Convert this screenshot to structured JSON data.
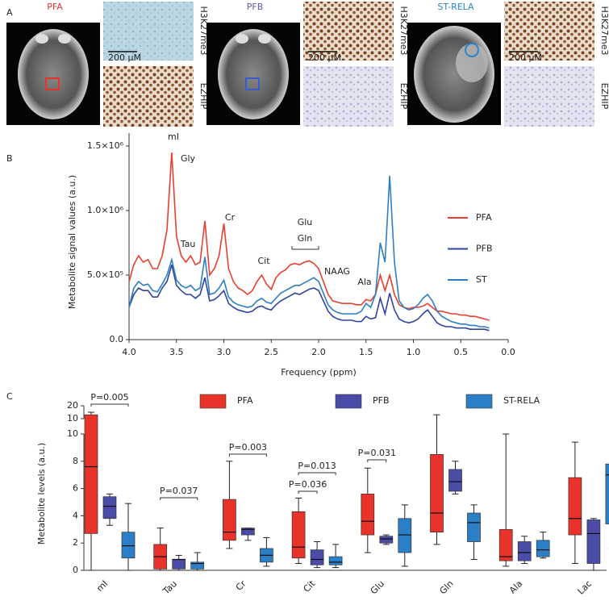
{
  "panel_a": {
    "label": "A",
    "tumors": [
      {
        "name": "PFA",
        "stains": [
          "H3K27me3",
          "EZHIP"
        ],
        "scale_bar": "200 μM"
      },
      {
        "name": "PFB",
        "stains": [
          "H3K27me3",
          "EZHIP"
        ],
        "scale_bar": "200 μM"
      },
      {
        "name": "ST-RELA",
        "stains": [
          "H3K27me3",
          "EZHIP"
        ],
        "scale_bar": "200 μM"
      }
    ]
  },
  "chart_data": [
    {
      "type": "line",
      "panel_label": "B",
      "ylabel": "Metabolite signal values (a.u.)",
      "xlabel": "Frequency (ppm)",
      "x": [
        4.0,
        3.95,
        3.9,
        3.85,
        3.8,
        3.75,
        3.7,
        3.65,
        3.6,
        3.55,
        3.5,
        3.45,
        3.4,
        3.35,
        3.3,
        3.25,
        3.2,
        3.15,
        3.1,
        3.05,
        3.0,
        2.95,
        2.9,
        2.85,
        2.8,
        2.75,
        2.7,
        2.65,
        2.6,
        2.55,
        2.5,
        2.45,
        2.4,
        2.35,
        2.3,
        2.25,
        2.2,
        2.15,
        2.1,
        2.05,
        2.0,
        1.95,
        1.9,
        1.85,
        1.8,
        1.75,
        1.7,
        1.65,
        1.6,
        1.55,
        1.5,
        1.45,
        1.4,
        1.35,
        1.3,
        1.25,
        1.2,
        1.15,
        1.1,
        1.05,
        1.0,
        0.95,
        0.9,
        0.85,
        0.8,
        0.75,
        0.7,
        0.65,
        0.6,
        0.55,
        0.5,
        0.45,
        0.4,
        0.35,
        0.3,
        0.25,
        0.2
      ],
      "xlim": [
        4.0,
        0.0
      ],
      "xticks": [
        {
          "value": 4.0,
          "label": "4.0"
        },
        {
          "value": 3.5,
          "label": "3.5"
        },
        {
          "value": 3.0,
          "label": "3.0"
        },
        {
          "value": 2.5,
          "label": "2.5"
        },
        {
          "value": 2.0,
          "label": "2.0"
        },
        {
          "value": 1.5,
          "label": "1.5"
        },
        {
          "value": 1.0,
          "label": "1.0"
        },
        {
          "value": 0.5,
          "label": "0.5"
        },
        {
          "value": 0.0,
          "label": "0.0"
        }
      ],
      "ylim": [
        0,
        1600000.0
      ],
      "yticks": [
        {
          "value": 0,
          "label": "0.0"
        },
        {
          "value": 500000.0,
          "label": "5.0×10⁵"
        },
        {
          "value": 1000000.0,
          "label": "1.0×10⁶"
        },
        {
          "value": 1500000.0,
          "label": "1.5×10⁶"
        }
      ],
      "legend": "right",
      "series": [
        {
          "name": "PFA",
          "color": "#e8402f",
          "values": [
            450000.0,
            580000.0,
            650000.0,
            600000.0,
            620000.0,
            550000.0,
            550000.0,
            650000.0,
            850000.0,
            1450000.0,
            800000.0,
            650000.0,
            600000.0,
            650000.0,
            580000.0,
            600000.0,
            920000.0,
            500000.0,
            550000.0,
            650000.0,
            900000.0,
            550000.0,
            450000.0,
            400000.0,
            380000.0,
            350000.0,
            380000.0,
            450000.0,
            500000.0,
            430000.0,
            390000.0,
            480000.0,
            520000.0,
            540000.0,
            580000.0,
            590000.0,
            580000.0,
            600000.0,
            610000.0,
            590000.0,
            550000.0,
            450000.0,
            350000.0,
            300000.0,
            290000.0,
            280000.0,
            280000.0,
            280000.0,
            270000.0,
            270000.0,
            310000.0,
            300000.0,
            350000.0,
            500000.0,
            380000.0,
            500000.0,
            350000.0,
            270000.0,
            250000.0,
            240000.0,
            250000.0,
            250000.0,
            260000.0,
            280000.0,
            250000.0,
            220000.0,
            220000.0,
            210000.0,
            200000.0,
            200000.0,
            190000.0,
            190000.0,
            180000.0,
            180000.0,
            170000.0,
            160000.0,
            150000.0
          ]
        },
        {
          "name": "PFB",
          "color": "#2f43a0",
          "values": [
            250000.0,
            350000.0,
            400000.0,
            380000.0,
            380000.0,
            330000.0,
            330000.0,
            400000.0,
            450000.0,
            580000.0,
            420000.0,
            380000.0,
            350000.0,
            350000.0,
            320000.0,
            350000.0,
            480000.0,
            300000.0,
            310000.0,
            340000.0,
            380000.0,
            280000.0,
            250000.0,
            230000.0,
            220000.0,
            210000.0,
            220000.0,
            250000.0,
            260000.0,
            240000.0,
            230000.0,
            270000.0,
            300000.0,
            320000.0,
            340000.0,
            360000.0,
            350000.0,
            370000.0,
            390000.0,
            400000.0,
            380000.0,
            300000.0,
            220000.0,
            180000.0,
            160000.0,
            150000.0,
            150000.0,
            150000.0,
            140000.0,
            140000.0,
            180000.0,
            160000.0,
            170000.0,
            320000.0,
            200000.0,
            360000.0,
            230000.0,
            160000.0,
            140000.0,
            130000.0,
            140000.0,
            160000.0,
            200000.0,
            230000.0,
            180000.0,
            130000.0,
            110000.0,
            100000.0,
            100000.0,
            90000.0,
            90000.0,
            90000.0,
            80000.0,
            80000.0,
            80000.0,
            80000.0,
            70000.0
          ]
        },
        {
          "name": "ST",
          "color": "#2d7fc4",
          "values": [
            250000.0,
            400000.0,
            450000.0,
            420000.0,
            430000.0,
            380000.0,
            370000.0,
            430000.0,
            500000.0,
            620000.0,
            460000.0,
            420000.0,
            400000.0,
            420000.0,
            380000.0,
            400000.0,
            640000.0,
            350000.0,
            360000.0,
            400000.0,
            460000.0,
            330000.0,
            290000.0,
            270000.0,
            260000.0,
            250000.0,
            260000.0,
            300000.0,
            320000.0,
            290000.0,
            280000.0,
            320000.0,
            360000.0,
            380000.0,
            400000.0,
            420000.0,
            420000.0,
            440000.0,
            460000.0,
            480000.0,
            450000.0,
            360000.0,
            270000.0,
            230000.0,
            210000.0,
            200000.0,
            200000.0,
            200000.0,
            200000.0,
            220000.0,
            280000.0,
            250000.0,
            350000.0,
            750000.0,
            600000.0,
            1270000.0,
            600000.0,
            300000.0,
            250000.0,
            230000.0,
            240000.0,
            270000.0,
            320000.0,
            350000.0,
            300000.0,
            220000.0,
            180000.0,
            160000.0,
            140000.0,
            130000.0,
            120000.0,
            120000.0,
            110000.0,
            110000.0,
            100000.0,
            100000.0,
            90000.0
          ]
        }
      ],
      "annotations": [
        "mI",
        "Gly",
        "Tau",
        "Cr",
        "Glu",
        "Gln",
        "Cit",
        "NAAG",
        "Ala"
      ]
    },
    {
      "type": "box",
      "panel_label": "C",
      "ylabel": "Metabolite levels (a.u.)",
      "categories": [
        "mI",
        "Tau",
        "Cr",
        "Cit",
        "Glu",
        "Gln",
        "Ala",
        "Lac"
      ],
      "ylim": [
        0,
        10
      ],
      "yticks": [
        0,
        2,
        4,
        6,
        8,
        10
      ],
      "ylim_upper": [
        10,
        20
      ],
      "yticks_upper": [
        10,
        20
      ],
      "legend": "top",
      "series": [
        {
          "name": "PFA",
          "color": "#e8322a",
          "values": [
            {
              "min": 0,
              "q1": 2.7,
              "median": 7.6,
              "q3": 13,
              "max": 15
            },
            {
              "min": 0,
              "q1": 0.1,
              "median": 1.0,
              "q3": 1.9,
              "max": 3.1
            },
            {
              "min": 1.6,
              "q1": 2.2,
              "median": 2.8,
              "q3": 5.2,
              "max": 8.0
            },
            {
              "min": 0.5,
              "q1": 0.9,
              "median": 1.7,
              "q3": 4.3,
              "max": 5.3
            },
            {
              "min": 1.3,
              "q1": 2.6,
              "median": 3.6,
              "q3": 5.6,
              "max": 7.5
            },
            {
              "min": 1.9,
              "q1": 2.8,
              "median": 4.2,
              "q3": 8.5,
              "max": 13
            },
            {
              "min": 0.3,
              "q1": 0.7,
              "median": 1.0,
              "q3": 3.0,
              "max": 10
            },
            {
              "min": 0.5,
              "q1": 2.6,
              "median": 3.8,
              "q3": 6.8,
              "max": 9.4
            }
          ]
        },
        {
          "name": "PFB",
          "color": "#4b4ba8",
          "values": [
            {
              "min": 3.3,
              "q1": 3.8,
              "median": 4.7,
              "q3": 5.4,
              "max": 5.6
            },
            {
              "min": 0,
              "q1": 0.1,
              "median": 0.8,
              "q3": 0.8,
              "max": 1.1
            },
            {
              "min": 2.2,
              "q1": 2.6,
              "median": 3.0,
              "q3": 3.1,
              "max": 3.1
            },
            {
              "min": 0.2,
              "q1": 0.4,
              "median": 0.8,
              "q3": 1.5,
              "max": 2.1
            },
            {
              "min": 1.9,
              "q1": 2.0,
              "median": 2.3,
              "q3": 2.5,
              "max": 2.6
            },
            {
              "min": 5.6,
              "q1": 5.8,
              "median": 6.5,
              "q3": 7.4,
              "max": 8.0
            },
            {
              "min": 0.5,
              "q1": 0.7,
              "median": 1.3,
              "q3": 2.1,
              "max": 2.5
            },
            {
              "min": 0,
              "q1": 0.5,
              "median": 2.7,
              "q3": 3.7,
              "max": 3.8
            }
          ]
        },
        {
          "name": "ST-RELA",
          "color": "#2a7fc6",
          "values": [
            {
              "min": 0,
              "q1": 0.9,
              "median": 1.8,
              "q3": 2.8,
              "max": 4.9
            },
            {
              "min": 0,
              "q1": 0.1,
              "median": 0.5,
              "q3": 0.6,
              "max": 1.3
            },
            {
              "min": 0.3,
              "q1": 0.6,
              "median": 1.1,
              "q3": 1.6,
              "max": 2.4
            },
            {
              "min": 0.2,
              "q1": 0.4,
              "median": 0.6,
              "q3": 1.0,
              "max": 1.9
            },
            {
              "min": 0.3,
              "q1": 1.3,
              "median": 2.6,
              "q3": 3.8,
              "max": 4.8
            },
            {
              "min": 0.8,
              "q1": 2.1,
              "median": 3.5,
              "q3": 4.2,
              "max": 4.8
            },
            {
              "min": 0.9,
              "q1": 1.0,
              "median": 1.5,
              "q3": 2.2,
              "max": 2.8
            },
            {
              "min": 1.6,
              "q1": 3.4,
              "median": 7.0,
              "q3": 7.8,
              "max": 7.9
            }
          ]
        }
      ],
      "p_values": [
        "P=0.005",
        "P=0.037",
        "P=0.003",
        "P=0.013",
        "P=0.036",
        "P=0.031"
      ]
    }
  ]
}
